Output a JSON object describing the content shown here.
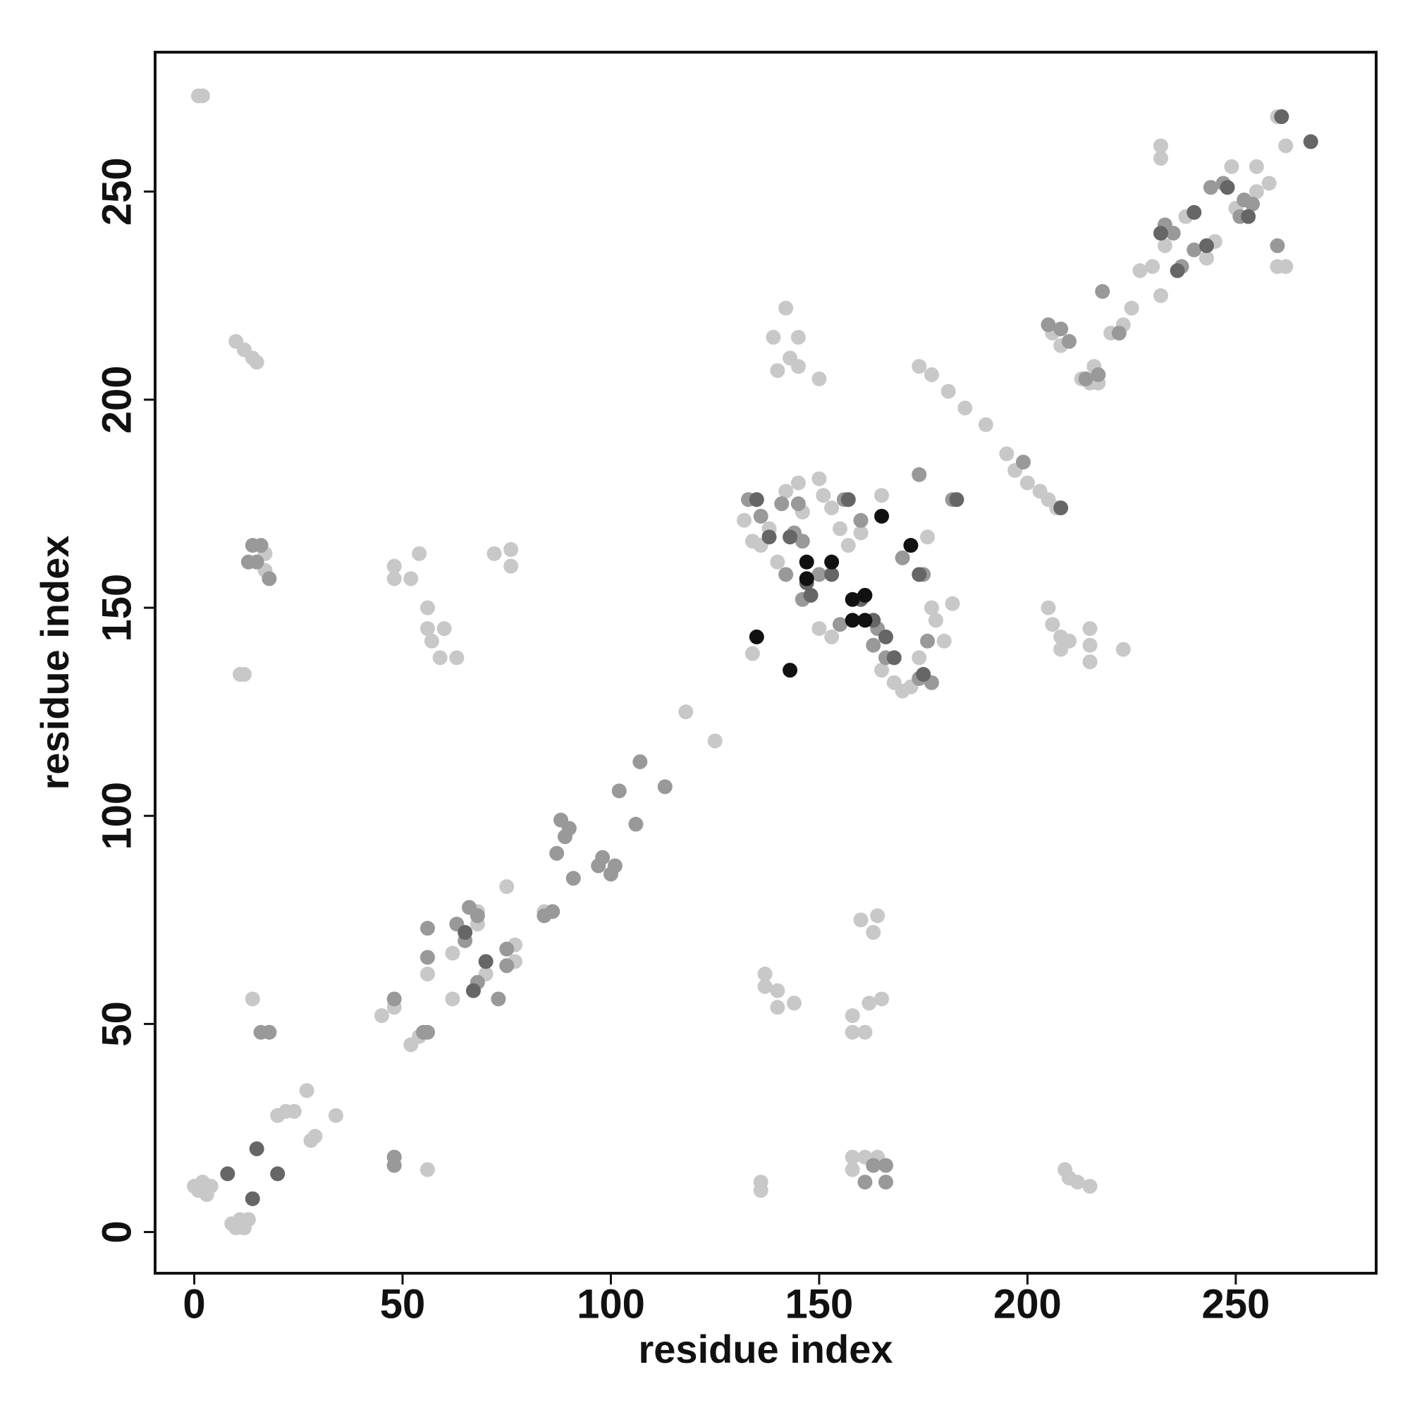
{
  "chart_data": {
    "type": "scatter",
    "xlabel": "residue index",
    "ylabel": "residue index",
    "xlim": [
      -9.4,
      283.7
    ],
    "ylim": [
      -9.9,
      283.5
    ],
    "xticks": [
      0,
      50,
      100,
      150,
      200,
      250
    ],
    "yticks": [
      0,
      50,
      100,
      150,
      200,
      250
    ],
    "series": [
      {
        "color": "#c8c8c8",
        "x": [
          1,
          2,
          0,
          1,
          2,
          3,
          4,
          9,
          10,
          11,
          12,
          13,
          10,
          12,
          14,
          15,
          17,
          17,
          11,
          12,
          14,
          20,
          22,
          24,
          27,
          28,
          29,
          34,
          48,
          48,
          52,
          54,
          56,
          56,
          57,
          59,
          60,
          63,
          72,
          76,
          76,
          45,
          48,
          52,
          54,
          56,
          56,
          62,
          62,
          68,
          68,
          70,
          77,
          77,
          75,
          84,
          118,
          125,
          134,
          137,
          137,
          140,
          140,
          144,
          136,
          136,
          139,
          140,
          142,
          143,
          145,
          145,
          150,
          142,
          145,
          150,
          151,
          153,
          132,
          134,
          136,
          138,
          140,
          146,
          155,
          157,
          160,
          165,
          158,
          158,
          160,
          161,
          162,
          163,
          164,
          165,
          158,
          158,
          161,
          164,
          150,
          153,
          165,
          168,
          170,
          172,
          174,
          176,
          177,
          178,
          180,
          182,
          205,
          206,
          208,
          208,
          210,
          215,
          215,
          215,
          223,
          209,
          210,
          212,
          215,
          174,
          177,
          181,
          185,
          190,
          195,
          197,
          200,
          203,
          205,
          207,
          206,
          208,
          213,
          215,
          216,
          217,
          220,
          223,
          225,
          227,
          230,
          232,
          232,
          232,
          238,
          245,
          250,
          255,
          258,
          260,
          262,
          260,
          262,
          233,
          243,
          249,
          255
        ],
        "values": [
          273,
          273,
          11,
          10,
          12,
          9,
          11,
          2,
          1,
          3,
          1,
          3,
          214,
          212,
          210,
          209,
          163,
          159,
          134,
          134,
          56,
          28,
          29,
          29,
          34,
          22,
          23,
          28,
          160,
          157,
          157,
          163,
          150,
          145,
          142,
          138,
          145,
          138,
          163,
          164,
          160,
          52,
          54,
          45,
          47,
          62,
          15,
          56,
          67,
          77,
          74,
          62,
          65,
          69,
          83,
          77,
          125,
          118,
          139,
          62,
          59,
          58,
          54,
          55,
          12,
          10,
          215,
          207,
          222,
          210,
          215,
          208,
          205,
          178,
          180,
          181,
          177,
          174,
          171,
          166,
          165,
          169,
          161,
          173,
          169,
          165,
          168,
          177,
          52,
          48,
          75,
          48,
          55,
          72,
          76,
          56,
          18,
          15,
          18,
          18,
          145,
          143,
          135,
          132,
          130,
          131,
          138,
          167,
          150,
          147,
          142,
          151,
          150,
          146,
          143,
          140,
          142,
          145,
          141,
          137,
          140,
          15,
          13,
          12,
          11,
          208,
          206,
          202,
          198,
          194,
          187,
          183,
          180,
          178,
          176,
          174,
          216,
          213,
          205,
          204,
          208,
          204,
          216,
          218,
          222,
          231,
          232,
          261,
          258,
          225,
          244,
          238,
          246,
          250,
          252,
          268,
          261,
          232,
          232,
          237,
          234,
          256,
          256
        ]
      },
      {
        "color": "#999999",
        "x": [
          14,
          13,
          15,
          16,
          18,
          16,
          18,
          48,
          48,
          48,
          56,
          55,
          56,
          56,
          63,
          65,
          66,
          68,
          68,
          73,
          75,
          75,
          84,
          86,
          87,
          88,
          89,
          90,
          91,
          97,
          98,
          100,
          101,
          102,
          107,
          106,
          113,
          133,
          136,
          141,
          142,
          145,
          146,
          146,
          150,
          155,
          156,
          160,
          164,
          163,
          166,
          170,
          175,
          176,
          174,
          177,
          182,
          174,
          199,
          205,
          208,
          210,
          214,
          217,
          218,
          222,
          233,
          235,
          237,
          240,
          244,
          247,
          251,
          252,
          254,
          260,
          144,
          163,
          166,
          161,
          166
        ],
        "values": [
          165,
          161,
          161,
          165,
          157,
          48,
          48,
          56,
          18,
          16,
          48,
          48,
          73,
          66,
          74,
          70,
          78,
          76,
          60,
          56,
          64,
          68,
          76,
          77,
          91,
          99,
          95,
          97,
          85,
          88,
          90,
          86,
          88,
          106,
          113,
          98,
          107,
          176,
          172,
          175,
          158,
          175,
          166,
          152,
          158,
          146,
          176,
          171,
          145,
          141,
          138,
          162,
          158,
          142,
          133,
          132,
          176,
          182,
          185,
          218,
          217,
          214,
          205,
          206,
          226,
          216,
          242,
          240,
          232,
          236,
          251,
          252,
          244,
          248,
          247,
          237,
          168,
          16,
          16,
          12,
          12
        ]
      },
      {
        "color": "#666666",
        "x": [
          15,
          20,
          14,
          8,
          65,
          67,
          70,
          135,
          138,
          143,
          147,
          148,
          153,
          157,
          160,
          163,
          166,
          168,
          175,
          174,
          183,
          208,
          232,
          236,
          240,
          243,
          248,
          253,
          261,
          268
        ],
        "values": [
          20,
          14,
          8,
          14,
          72,
          58,
          65,
          176,
          167,
          167,
          156,
          153,
          158,
          176,
          152,
          147,
          143,
          138,
          134,
          158,
          176,
          174,
          240,
          231,
          245,
          237,
          251,
          244,
          268,
          262
        ]
      },
      {
        "color": "#111111",
        "x": [
          135,
          143,
          147,
          147,
          153,
          158,
          158,
          161,
          161,
          165,
          172
        ],
        "values": [
          143,
          135,
          161,
          157,
          161,
          152,
          147,
          153,
          147,
          172,
          165
        ]
      }
    ]
  }
}
